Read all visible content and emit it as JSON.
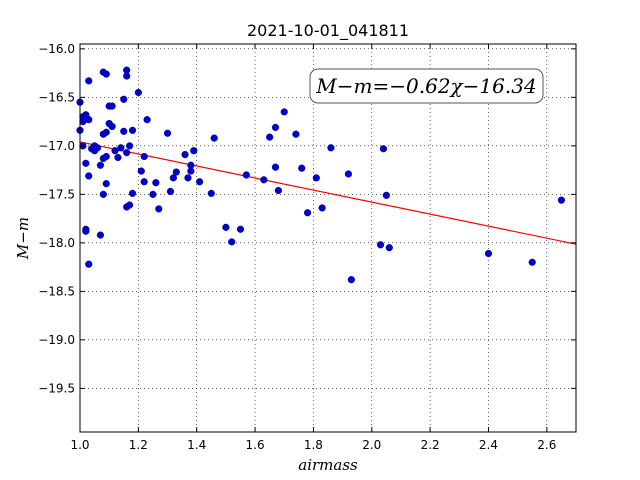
{
  "chart_data": {
    "type": "scatter",
    "title": "2021-10-01_041811",
    "xlabel": "airmass",
    "ylabel": "M−m",
    "xlim": [
      1.0,
      2.7
    ],
    "ylim": [
      -19.95,
      -15.95
    ],
    "x_ticks": [
      1.0,
      1.2,
      1.4,
      1.6,
      1.8,
      2.0,
      2.2,
      2.4,
      2.6
    ],
    "x_tick_labels": [
      "1.0",
      "1.2",
      "1.4",
      "1.6",
      "1.8",
      "2.0",
      "2.2",
      "2.4",
      "2.6"
    ],
    "y_ticks": [
      -16.0,
      -16.5,
      -17.0,
      -17.5,
      -18.0,
      -18.5,
      -19.0,
      -19.5
    ],
    "y_tick_labels": [
      "−16.0",
      "−16.5",
      "−17.0",
      "−17.5",
      "−18.0",
      "−18.5",
      "−19.0",
      "−19.5"
    ],
    "grid": true,
    "annotation": "M−m=−0.62χ−16.34",
    "fit_line": {
      "slope": -0.62,
      "intercept": -16.34,
      "color": "#ff0000"
    },
    "marker_color": "#0000cc",
    "points": [
      [
        1.0,
        -16.55
      ],
      [
        1.0,
        -16.84
      ],
      [
        1.01,
        -16.75
      ],
      [
        1.01,
        -17.0
      ],
      [
        1.01,
        -16.7
      ],
      [
        1.02,
        -16.68
      ],
      [
        1.02,
        -17.18
      ],
      [
        1.02,
        -17.88
      ],
      [
        1.02,
        -17.86
      ],
      [
        1.03,
        -16.33
      ],
      [
        1.03,
        -17.31
      ],
      [
        1.03,
        -18.22
      ],
      [
        1.03,
        -16.73
      ],
      [
        1.04,
        -17.03
      ],
      [
        1.05,
        -17.0
      ],
      [
        1.05,
        -17.05
      ],
      [
        1.06,
        -17.02
      ],
      [
        1.07,
        -17.92
      ],
      [
        1.07,
        -17.2
      ],
      [
        1.08,
        -17.13
      ],
      [
        1.08,
        -17.5
      ],
      [
        1.08,
        -16.88
      ],
      [
        1.08,
        -16.24
      ],
      [
        1.09,
        -16.26
      ],
      [
        1.09,
        -17.11
      ],
      [
        1.09,
        -17.39
      ],
      [
        1.09,
        -16.86
      ],
      [
        1.1,
        -16.59
      ],
      [
        1.1,
        -16.77
      ],
      [
        1.11,
        -16.59
      ],
      [
        1.11,
        -16.8
      ],
      [
        1.12,
        -17.05
      ],
      [
        1.13,
        -17.12
      ],
      [
        1.14,
        -17.02
      ],
      [
        1.15,
        -16.85
      ],
      [
        1.15,
        -16.52
      ],
      [
        1.16,
        -17.63
      ],
      [
        1.16,
        -16.22
      ],
      [
        1.16,
        -17.07
      ],
      [
        1.16,
        -16.28
      ],
      [
        1.17,
        -17.0
      ],
      [
        1.17,
        -17.61
      ],
      [
        1.18,
        -16.84
      ],
      [
        1.18,
        -17.49
      ],
      [
        1.2,
        -16.45
      ],
      [
        1.21,
        -17.26
      ],
      [
        1.22,
        -17.37
      ],
      [
        1.22,
        -17.11
      ],
      [
        1.23,
        -16.73
      ],
      [
        1.25,
        -17.5
      ],
      [
        1.26,
        -17.38
      ],
      [
        1.27,
        -17.65
      ],
      [
        1.3,
        -16.87
      ],
      [
        1.31,
        -17.47
      ],
      [
        1.32,
        -17.33
      ],
      [
        1.33,
        -17.27
      ],
      [
        1.36,
        -17.09
      ],
      [
        1.37,
        -17.33
      ],
      [
        1.38,
        -17.2
      ],
      [
        1.38,
        -17.26
      ],
      [
        1.39,
        -17.05
      ],
      [
        1.41,
        -17.37
      ],
      [
        1.45,
        -17.49
      ],
      [
        1.46,
        -16.92
      ],
      [
        1.5,
        -17.84
      ],
      [
        1.52,
        -17.99
      ],
      [
        1.55,
        -17.86
      ],
      [
        1.57,
        -17.3
      ],
      [
        1.63,
        -17.35
      ],
      [
        1.65,
        -16.91
      ],
      [
        1.67,
        -16.81
      ],
      [
        1.67,
        -17.22
      ],
      [
        1.68,
        -17.46
      ],
      [
        1.7,
        -16.65
      ],
      [
        1.74,
        -16.88
      ],
      [
        1.76,
        -17.23
      ],
      [
        1.78,
        -17.69
      ],
      [
        1.81,
        -17.33
      ],
      [
        1.83,
        -17.64
      ],
      [
        1.86,
        -17.02
      ],
      [
        1.92,
        -17.29
      ],
      [
        1.93,
        -18.38
      ],
      [
        2.03,
        -18.02
      ],
      [
        2.04,
        -17.03
      ],
      [
        2.05,
        -17.51
      ],
      [
        2.06,
        -18.05
      ],
      [
        2.4,
        -18.11
      ],
      [
        2.55,
        -18.2
      ],
      [
        2.65,
        -17.56
      ]
    ]
  }
}
